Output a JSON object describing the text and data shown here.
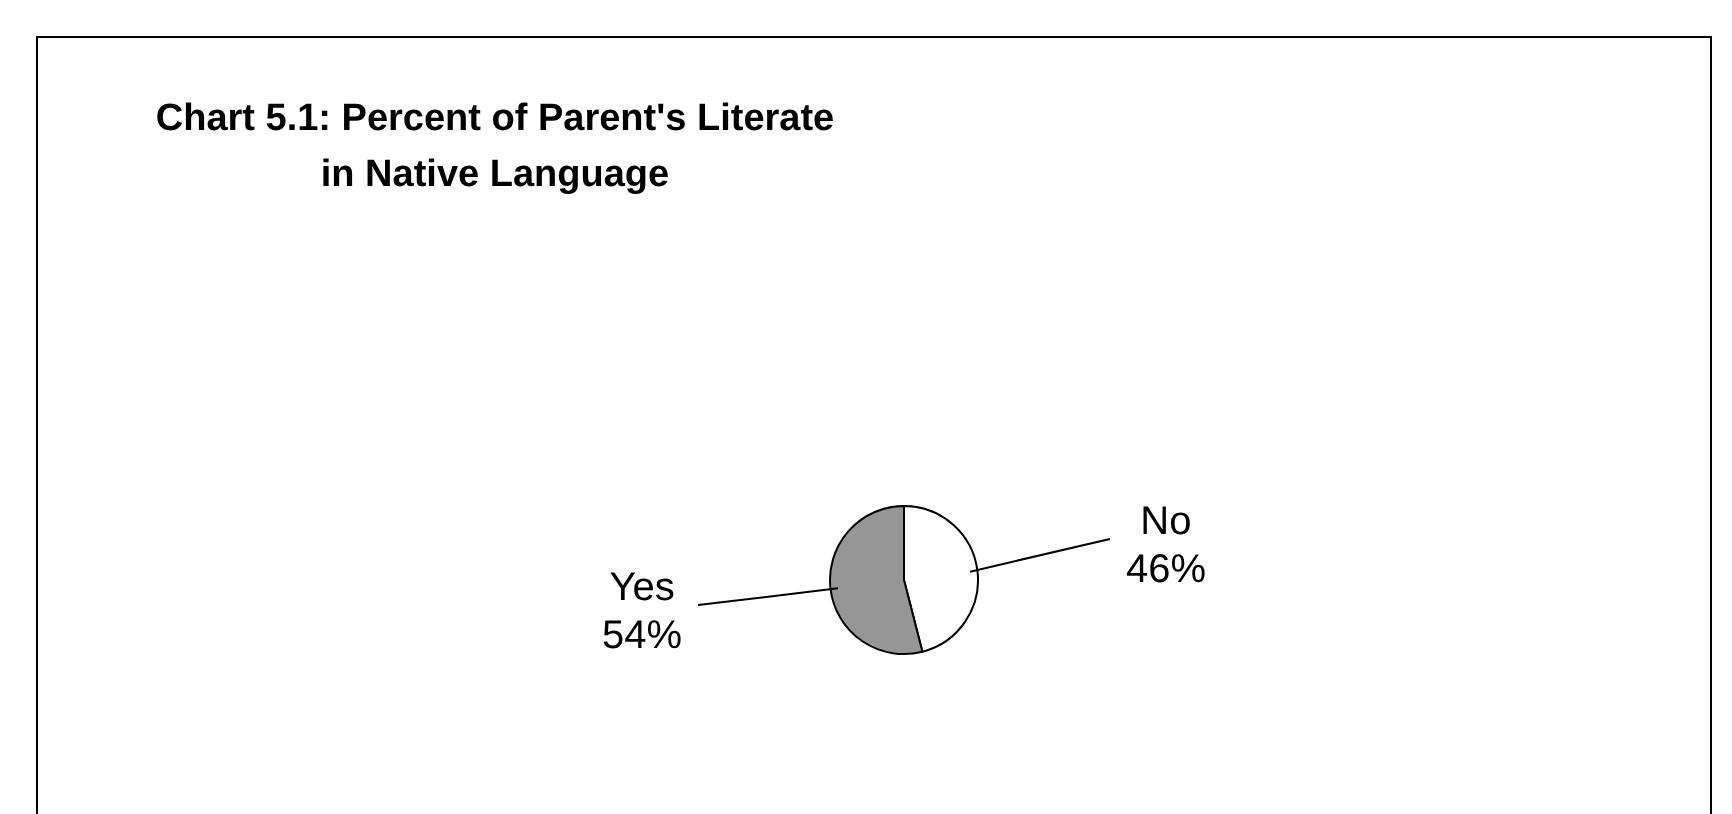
{
  "chart_data": {
    "type": "pie",
    "title": "Chart 5.1: Percent of Parent's Literate\nin Native Language",
    "categories": [
      "No",
      "Yes"
    ],
    "values": [
      46,
      54
    ],
    "colors": [
      "#ffffff",
      "#969696"
    ],
    "value_labels": [
      "46%",
      "54%"
    ],
    "legend": false
  }
}
